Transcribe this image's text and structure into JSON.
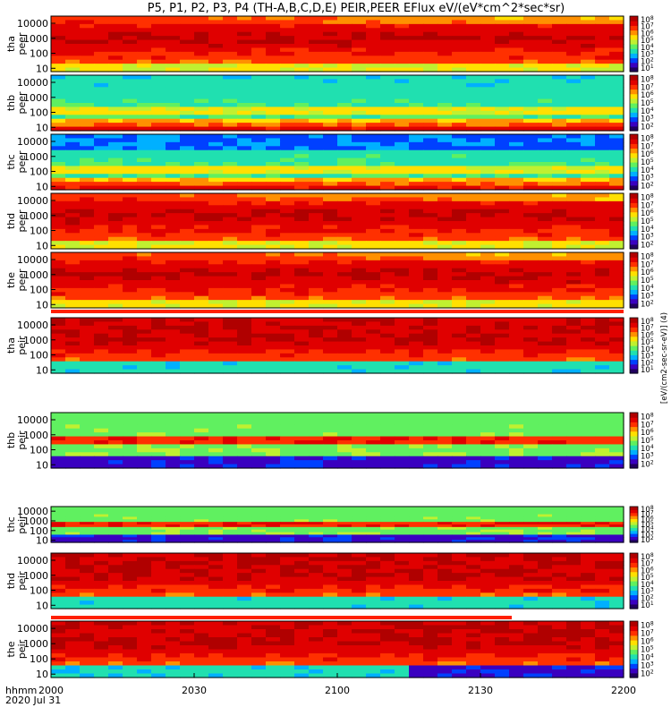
{
  "title": "P5, P1, P2, P3, P4 (TH-A,B,C,D,E) PEIR,PEER EFlux eV/(eV*cm^2*sec*sr)",
  "chart_data": {
    "type": "heatmap",
    "title": "P5, P1, P2, P3, P4 (TH-A,B,C,D,E) PEIR,PEER EFlux eV/(eV*cm^2*sec*sr)",
    "x_tick_labels": [
      "2000",
      "2030",
      "2100",
      "2130",
      "2200"
    ],
    "x_axis_header": [
      "hhmm",
      "2020 Jul 31"
    ],
    "y_scale": "log",
    "ylim": [
      6,
      30000
    ],
    "y_ticks": [
      10,
      100,
      1000,
      10000
    ],
    "y_tick_labels": [
      "10",
      "100",
      "1000",
      "10000"
    ],
    "colorbar_scale": "log",
    "colorbar_tick_labels": [
      "10^2",
      "10^3",
      "10^4",
      "10^5",
      "10^6",
      "10^7",
      "10^8"
    ],
    "colorbar_label": "[eV/(cm2-sec-sr-eV)] (4)",
    "panels": [
      {
        "name": "tha peer",
        "line1": "tha",
        "line2": "peer",
        "colorbar_ticks": [
          "10^1",
          "10^2",
          "10^3",
          "10^4",
          "10^5",
          "10^6",
          "10^7",
          "10^8"
        ]
      },
      {
        "name": "thb peer",
        "line1": "thb",
        "line2": "peer",
        "colorbar_ticks": [
          "10^2",
          "10^3",
          "10^4",
          "10^5",
          "10^6",
          "10^7",
          "10^8"
        ]
      },
      {
        "name": "thc peer",
        "line1": "thc",
        "line2": "peer",
        "colorbar_ticks": [
          "10^2",
          "10^3",
          "10^4",
          "10^5",
          "10^6",
          "10^7",
          "10^8"
        ]
      },
      {
        "name": "thd peer",
        "line1": "thd",
        "line2": "peer",
        "colorbar_ticks": [
          "10^2",
          "10^3",
          "10^4",
          "10^5",
          "10^6",
          "10^7",
          "10^8"
        ]
      },
      {
        "name": "the peer",
        "line1": "the",
        "line2": "peer",
        "colorbar_ticks": [
          "10^2",
          "10^3",
          "10^4",
          "10^5",
          "10^6",
          "10^7",
          "10^8"
        ]
      },
      {
        "name": "tha peir",
        "line1": "tha",
        "line2": "peir",
        "colorbar_ticks": [
          "10^1",
          "10^2",
          "10^3",
          "10^4",
          "10^5",
          "10^6",
          "10^7",
          "10^8"
        ]
      },
      {
        "name": "thb peir",
        "line1": "thb",
        "line2": "peir",
        "colorbar_ticks": [
          "10^2",
          "10^3",
          "10^4",
          "10^5",
          "10^6",
          "10^7",
          "10^8"
        ]
      },
      {
        "name": "thc peir",
        "line1": "thc",
        "line2": "peir",
        "colorbar_ticks": [
          "10^2",
          "10^3",
          "10^4",
          "10^5",
          "10^6",
          "10^7",
          "10^8"
        ]
      },
      {
        "name": "thd peir",
        "line1": "thd",
        "line2": "peir",
        "colorbar_ticks": [
          "10^1",
          "10^2",
          "10^3",
          "10^4",
          "10^5",
          "10^6",
          "10^7",
          "10^8"
        ]
      },
      {
        "name": "the peir",
        "line1": "the",
        "line2": "peir",
        "colorbar_ticks": [
          "10^2",
          "10^3",
          "10^4",
          "10^5",
          "10^6",
          "10^7",
          "10^8"
        ]
      }
    ],
    "colormap": [
      "#200060",
      "#3a00c0",
      "#0040ff",
      "#00b0ff",
      "#20e0b0",
      "#60f060",
      "#c0f030",
      "#ffe000",
      "#ff9000",
      "#ff3000",
      "#e00000",
      "#b00000"
    ]
  }
}
